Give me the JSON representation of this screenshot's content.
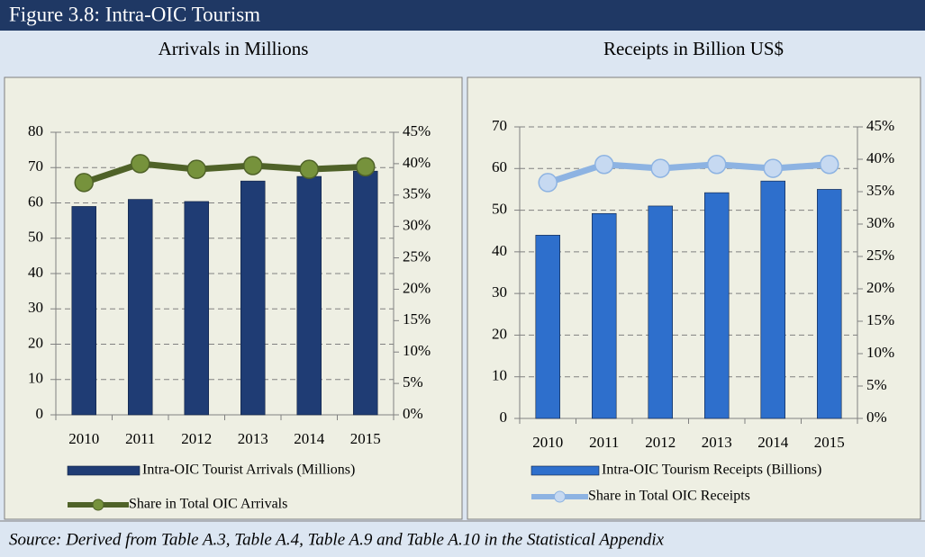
{
  "figure_title": "Figure 3.8: Intra-OIC Tourism",
  "source": "Source: Derived from Table A.3, Table A.4, Table A.9 and Table A.10 in the Statistical Appendix",
  "chart_data": [
    {
      "type": "combo",
      "title": "Arrivals in Millions",
      "categories": [
        "2010",
        "2011",
        "2012",
        "2013",
        "2014",
        "2015"
      ],
      "series": [
        {
          "name": "Intra-OIC Tourist Arrivals (Millions)",
          "type": "bar",
          "color": "#1f3c74",
          "values": [
            59,
            61,
            60.4,
            66.2,
            67.5,
            69
          ]
        },
        {
          "name": "Share in Total OIC Arrivals",
          "type": "line",
          "axis": "y2",
          "color": "#4f6228",
          "marker_color": "#76923c",
          "values": [
            37,
            40,
            39.1,
            39.7,
            39.1,
            39.5
          ]
        }
      ],
      "ylim": [
        0,
        80
      ],
      "yticks": [
        0,
        10,
        20,
        30,
        40,
        50,
        60,
        70,
        80
      ],
      "y2lim": [
        0,
        45
      ],
      "y2ticks": [
        {
          "value": 0,
          "label": "0%"
        },
        {
          "value": 5,
          "label": "5%"
        },
        {
          "value": 10,
          "label": "10%"
        },
        {
          "value": 15,
          "label": "15%"
        },
        {
          "value": 20,
          "label": "20%"
        },
        {
          "value": 25,
          "label": "25%"
        },
        {
          "value": 30,
          "label": "30%"
        },
        {
          "value": 35,
          "label": "35%"
        },
        {
          "value": 40,
          "label": "40%"
        },
        {
          "value": 45,
          "label": "45%"
        }
      ],
      "grid": true
    },
    {
      "type": "combo",
      "title": "Receipts in Billion US$",
      "categories": [
        "2010",
        "2011",
        "2012",
        "2013",
        "2014",
        "2015"
      ],
      "series": [
        {
          "name": "Intra-OIC Tourism Receipts (Billions)",
          "type": "bar",
          "color": "#2e6fcc",
          "values": [
            44,
            49.2,
            51,
            54.2,
            57,
            55
          ]
        },
        {
          "name": "Share in Total OIC Receipts",
          "type": "line",
          "axis": "y2",
          "color": "#8db3e2",
          "marker_color": "#c6d9f1",
          "values": [
            36.4,
            39.2,
            38.6,
            39.2,
            38.6,
            39.2
          ]
        }
      ],
      "ylim": [
        0,
        70
      ],
      "yticks": [
        0,
        10,
        20,
        30,
        40,
        50,
        60,
        70
      ],
      "y2lim": [
        0,
        45
      ],
      "y2ticks": [
        {
          "value": 0,
          "label": "0%"
        },
        {
          "value": 5,
          "label": "5%"
        },
        {
          "value": 10,
          "label": "10%"
        },
        {
          "value": 15,
          "label": "15%"
        },
        {
          "value": 20,
          "label": "20%"
        },
        {
          "value": 25,
          "label": "25%"
        },
        {
          "value": 30,
          "label": "30%"
        },
        {
          "value": 35,
          "label": "35%"
        },
        {
          "value": 40,
          "label": "40%"
        },
        {
          "value": 45,
          "label": "45%"
        }
      ],
      "grid": true
    }
  ]
}
